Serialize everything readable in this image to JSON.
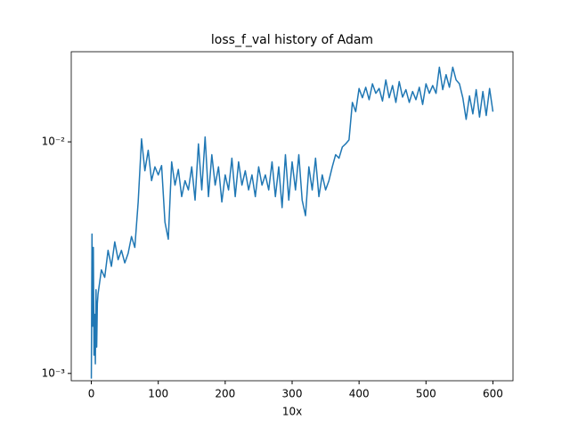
{
  "chart_data": {
    "type": "line",
    "title": "loss_f_val history of Adam",
    "x_label": "10x",
    "log_y": true,
    "xlim": [
      -30,
      630
    ],
    "xticks": [
      0,
      100,
      200,
      300,
      400,
      500,
      600
    ],
    "ylim": [
      0.00093,
      0.0245
    ],
    "yticks": [
      {
        "value": 0.001,
        "label": "10⁻³"
      },
      {
        "value": 0.01,
        "label": "10⁻²"
      }
    ],
    "x": [
      0,
      1,
      2,
      3,
      4,
      5,
      6,
      7,
      8,
      9,
      10,
      15,
      20,
      25,
      30,
      35,
      40,
      45,
      50,
      55,
      60,
      65,
      70,
      75,
      80,
      85,
      90,
      95,
      100,
      105,
      110,
      115,
      120,
      125,
      130,
      135,
      140,
      145,
      150,
      155,
      160,
      165,
      170,
      175,
      180,
      185,
      190,
      195,
      200,
      205,
      210,
      215,
      220,
      225,
      230,
      235,
      240,
      245,
      250,
      255,
      260,
      265,
      270,
      275,
      280,
      285,
      290,
      295,
      300,
      305,
      310,
      315,
      320,
      325,
      330,
      335,
      340,
      345,
      350,
      355,
      360,
      365,
      370,
      375,
      380,
      385,
      390,
      395,
      400,
      405,
      410,
      415,
      420,
      425,
      430,
      435,
      440,
      445,
      450,
      455,
      460,
      465,
      470,
      475,
      480,
      485,
      490,
      495,
      500,
      505,
      510,
      515,
      520,
      525,
      530,
      535,
      540,
      545,
      550,
      555,
      560,
      565,
      570,
      575,
      580,
      585,
      590,
      595,
      600
    ],
    "series": [
      {
        "name": "loss_f_val",
        "color": "#1f77b4",
        "values": [
          0.00095,
          0.004,
          0.0016,
          0.0035,
          0.0012,
          0.0018,
          0.0011,
          0.0023,
          0.0013,
          0.002,
          0.0022,
          0.0028,
          0.0026,
          0.0034,
          0.0029,
          0.0037,
          0.0031,
          0.0034,
          0.003,
          0.0033,
          0.0039,
          0.0035,
          0.0055,
          0.0103,
          0.0075,
          0.0092,
          0.0068,
          0.0078,
          0.0072,
          0.0079,
          0.0045,
          0.0038,
          0.0082,
          0.0065,
          0.0076,
          0.0058,
          0.0068,
          0.0062,
          0.0078,
          0.0056,
          0.0098,
          0.0062,
          0.0105,
          0.0058,
          0.0088,
          0.0065,
          0.0078,
          0.0055,
          0.0072,
          0.0062,
          0.0085,
          0.0058,
          0.0082,
          0.0065,
          0.0075,
          0.0062,
          0.0072,
          0.0058,
          0.0078,
          0.0065,
          0.0072,
          0.0062,
          0.0082,
          0.0058,
          0.0078,
          0.0052,
          0.0088,
          0.0056,
          0.0082,
          0.0062,
          0.0088,
          0.0056,
          0.0048,
          0.0078,
          0.0062,
          0.0085,
          0.0058,
          0.0072,
          0.0062,
          0.0068,
          0.0078,
          0.0088,
          0.0085,
          0.0095,
          0.0098,
          0.0102,
          0.0148,
          0.0135,
          0.017,
          0.0155,
          0.0172,
          0.0152,
          0.0178,
          0.0162,
          0.017,
          0.015,
          0.0185,
          0.0155,
          0.0175,
          0.0148,
          0.0182,
          0.0156,
          0.0168,
          0.0148,
          0.0165,
          0.0152,
          0.0172,
          0.0145,
          0.0178,
          0.0162,
          0.0175,
          0.0162,
          0.021,
          0.0168,
          0.0195,
          0.0172,
          0.021,
          0.0185,
          0.0178,
          0.0155,
          0.0125,
          0.0158,
          0.0132,
          0.0168,
          0.0128,
          0.0165,
          0.013,
          0.017,
          0.0135
        ]
      }
    ]
  }
}
